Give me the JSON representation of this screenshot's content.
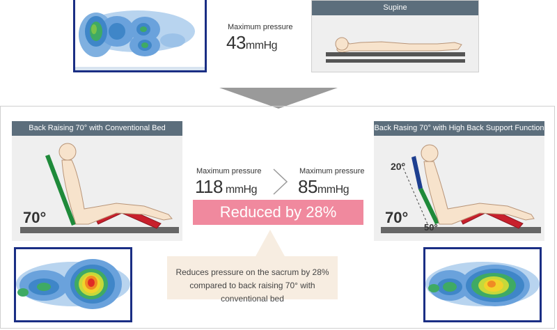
{
  "supine": {
    "pressure_label": "Maximum pressure",
    "pressure_value": "43",
    "pressure_unit": "mmHg",
    "panel_title": "Supine"
  },
  "conventional": {
    "panel_title": "Back Raising 70° with Conventional Bed",
    "angle": "70°",
    "pressure_label": "Maximum pressure",
    "pressure_value": "118",
    "pressure_unit": " mmHg"
  },
  "high_back": {
    "panel_title": "Back Rasing 70° with High Back Support Function",
    "angle": "70°",
    "upper_angle": "20°",
    "lower_angle": "50°",
    "pressure_label": "Maximum pressure",
    "pressure_value": "85",
    "pressure_unit": "mmHg"
  },
  "reduction": {
    "banner_text": "Reduced by 28%",
    "callout_line1": "Reduces pressure on the sacrum by 28%",
    "callout_line2": "compared to back raising 70° with conventional bed"
  },
  "colors": {
    "panel_header": "#5c6e7c",
    "map_border": "#1a2e84",
    "banner_pink": "#f0899e",
    "backrest_green": "#1f8a3a",
    "backrest_blue": "#1d3e8f",
    "leg_red": "#c8202c",
    "bed_gray": "#666666"
  }
}
